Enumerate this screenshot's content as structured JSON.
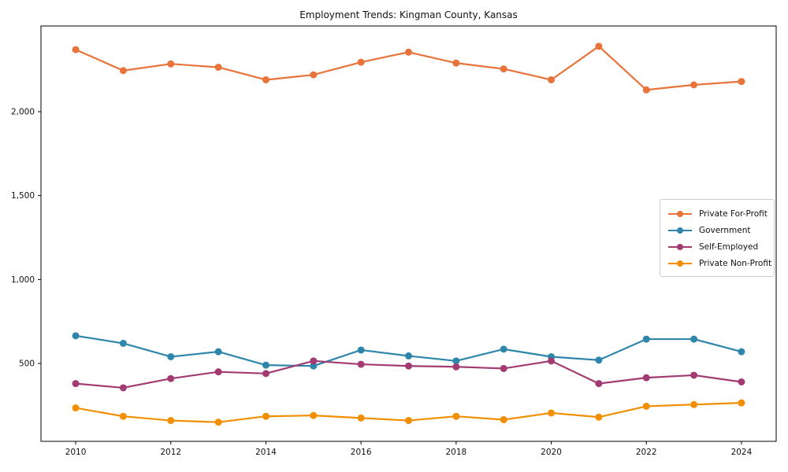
{
  "chart_data": {
    "type": "line",
    "title": "Employment Trends: Kingman County, Kansas",
    "xlabel": "",
    "ylabel": "",
    "x": [
      2010,
      2011,
      2012,
      2013,
      2014,
      2015,
      2016,
      2017,
      2018,
      2019,
      2020,
      2021,
      2022,
      2023,
      2024
    ],
    "series": [
      {
        "name": "Private For-Profit",
        "color": "#E8743B",
        "values": [
          2370,
          2245,
          2285,
          2265,
          2190,
          2220,
          2295,
          2355,
          2290,
          2255,
          2190,
          2390,
          2130,
          2160,
          2180
        ]
      },
      {
        "name": "Government",
        "color": "#2E86AB",
        "values": [
          665,
          620,
          540,
          570,
          490,
          485,
          580,
          545,
          515,
          585,
          540,
          520,
          645,
          645,
          570
        ]
      },
      {
        "name": "Self-Employed",
        "color": "#A23B72",
        "values": [
          380,
          355,
          410,
          450,
          440,
          515,
          495,
          485,
          480,
          470,
          515,
          380,
          415,
          430,
          390
        ]
      },
      {
        "name": "Private Non-Profit",
        "color": "#F18F01",
        "values": [
          235,
          185,
          160,
          150,
          185,
          190,
          175,
          160,
          185,
          165,
          205,
          180,
          245,
          255,
          265
        ]
      }
    ],
    "xtick_years": [
      2010,
      2012,
      2014,
      2016,
      2018,
      2020,
      2022,
      2024
    ],
    "xtick_labels": [
      "2010",
      "2012",
      "2014",
      "2016",
      "2018",
      "2020",
      "2022",
      "2024"
    ],
    "ytick_values": [
      500,
      1000,
      1500,
      2000
    ],
    "ytick_labels": [
      "500",
      "1,000",
      "1,500",
      "2,000"
    ],
    "xlim": [
      2009.27,
      2024.73
    ],
    "ylim": [
      36,
      2511
    ],
    "grid": false,
    "legend_position": "center-right",
    "marker": "circle",
    "line_width": 2.2,
    "marker_radius": 4.5
  }
}
